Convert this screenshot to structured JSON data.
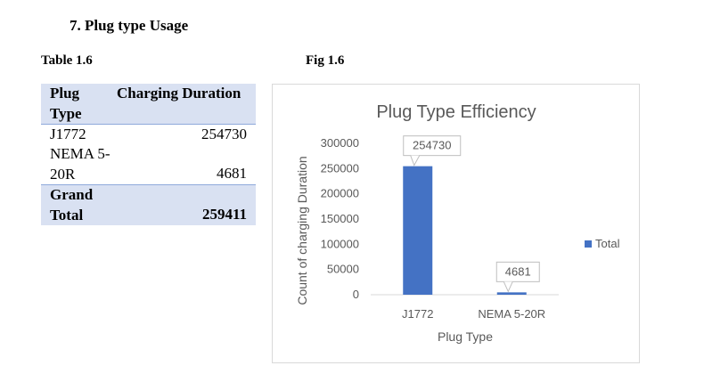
{
  "section_heading": "7.   Plug type Usage",
  "table_caption": "Table 1.6",
  "fig_caption": "Fig 1.6",
  "table": {
    "header": {
      "col1": "Plug Type",
      "col2": "Charging Duration"
    },
    "rows": [
      {
        "label": "J1772",
        "value": "254730"
      },
      {
        "label": "NEMA 5-20R",
        "value": "4681"
      }
    ],
    "total": {
      "label": "Grand Total",
      "value": "259411"
    }
  },
  "chart_data": {
    "type": "bar",
    "title": "Plug Type Efficiency",
    "xlabel": "Plug Type",
    "ylabel": "Count of charging  Duration",
    "categories": [
      "J1772",
      "NEMA 5-20R"
    ],
    "series": [
      {
        "name": "Total",
        "values": [
          254730,
          4681
        ]
      }
    ],
    "ylim": [
      0,
      300000
    ],
    "yticks": [
      "300000",
      "250000",
      "200000",
      "150000",
      "100000",
      "50000",
      "0"
    ],
    "data_labels": [
      "254730",
      "4681"
    ],
    "legend": "right",
    "grid": false,
    "bar_color": "#4472c4"
  }
}
